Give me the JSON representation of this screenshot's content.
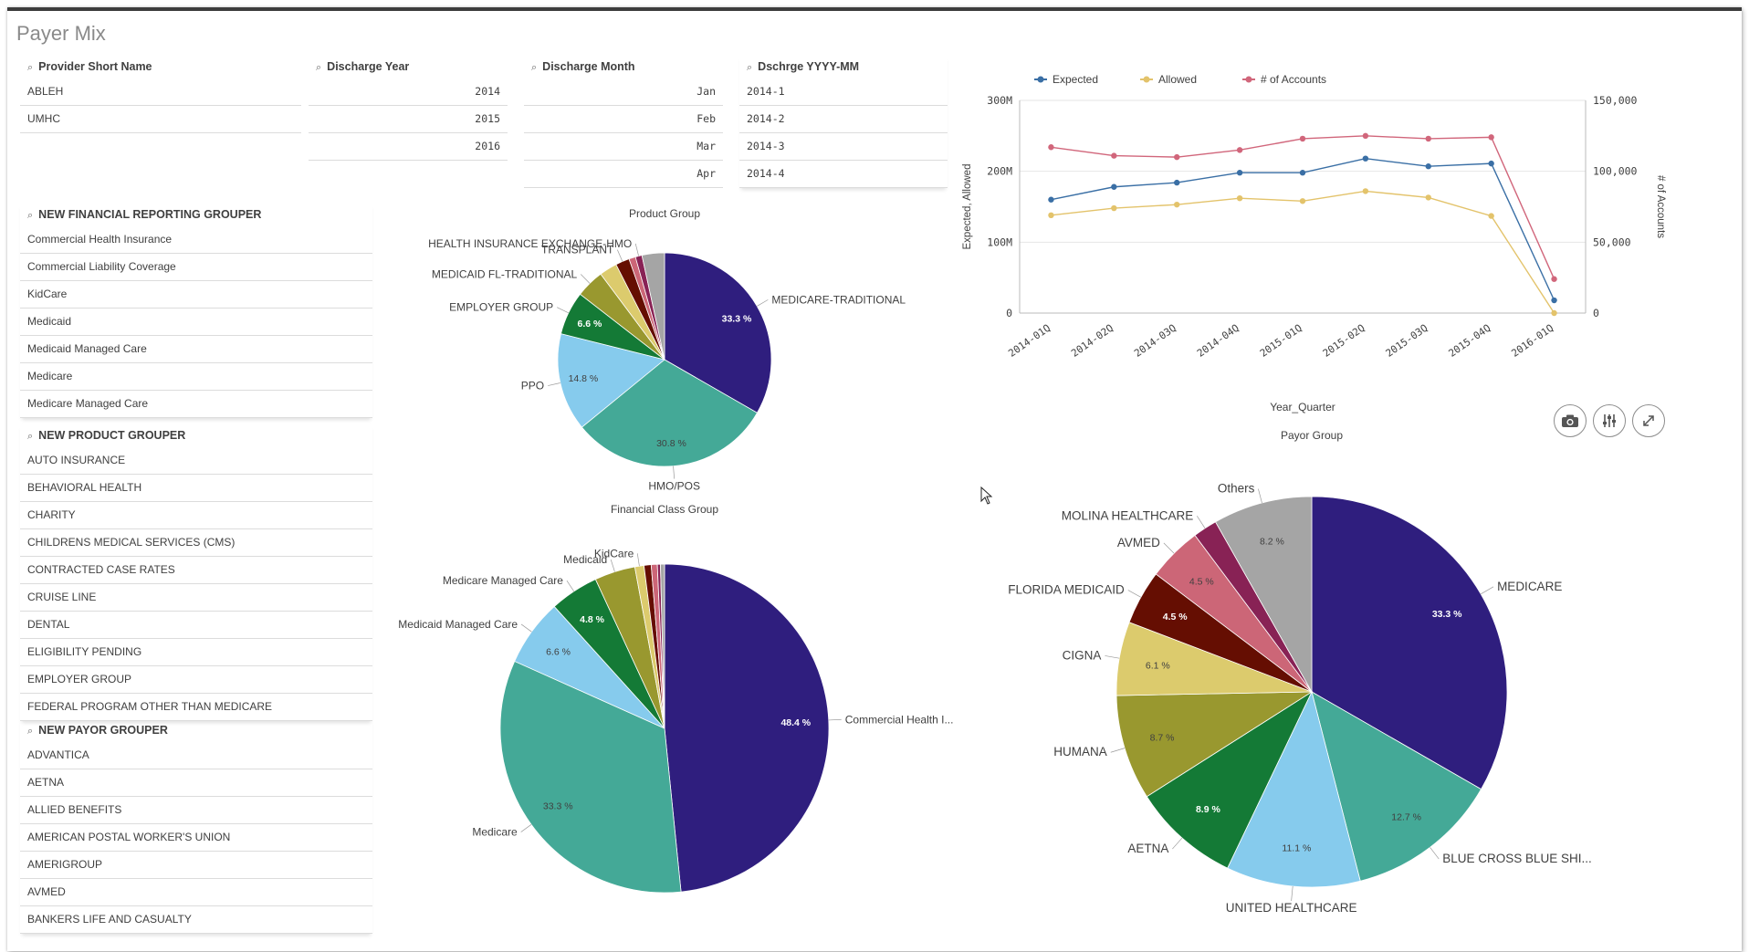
{
  "sheet": {
    "title": "Payer Mix"
  },
  "filters": {
    "provider": {
      "title": "Provider Short Name",
      "items": [
        "ABLEH",
        "UMHC"
      ]
    },
    "year": {
      "title": "Discharge Year",
      "items": [
        "2014",
        "2015",
        "2016"
      ]
    },
    "month": {
      "title": "Discharge Month",
      "items": [
        "Jan",
        "Feb",
        "Mar",
        "Apr"
      ]
    },
    "yyyymm": {
      "title": "Dschrge YYYY-MM",
      "items": [
        "2014-1",
        "2014-2",
        "2014-3",
        "2014-4"
      ]
    },
    "financial": {
      "title": "NEW FINANCIAL REPORTING GROUPER",
      "items": [
        "Commercial Health Insurance",
        "Commercial Liability Coverage",
        "KidCare",
        "Medicaid",
        "Medicaid Managed Care",
        "Medicare",
        "Medicare Managed Care"
      ]
    },
    "product": {
      "title": "NEW PRODUCT GROUPER",
      "items": [
        "AUTO INSURANCE",
        "BEHAVIORAL HEALTH",
        "CHARITY",
        "CHILDRENS MEDICAL SERVICES (CMS)",
        "CONTRACTED CASE RATES",
        "CRUISE LINE",
        "DENTAL",
        "ELIGIBILITY PENDING",
        "EMPLOYER GROUP",
        "FEDERAL PROGRAM OTHER THAN MEDICARE"
      ]
    },
    "payor": {
      "title": "NEW PAYOR GROUPER",
      "items": [
        "ADVANTICA",
        "AETNA",
        "ALLIED BENEFITS",
        "AMERICAN POSTAL WORKER'S UNION",
        "AMERIGROUP",
        "AVMED",
        "BANKERS LIFE AND CASUALTY"
      ]
    }
  },
  "tool_icons": [
    "camera-icon",
    "sliders-icon",
    "expand-icon"
  ],
  "colors": {
    "navy": "#2f1e7e",
    "teal": "#44a997",
    "lightblue": "#86cbed",
    "green": "#147a36",
    "olive": "#99982f",
    "sand": "#dccb6d",
    "darkred": "#650e02",
    "rose": "#cc6677",
    "plum": "#882255",
    "gray": "#a5a5a5",
    "line_expected": "#3a6fa5",
    "line_allowed": "#e3c36b",
    "line_accounts": "#d1667b"
  },
  "chart_data": [
    {
      "id": "line",
      "type": "line",
      "title": "",
      "legend": [
        "Expected",
        "Allowed",
        "# of Accounts"
      ],
      "categories": [
        "2014-01Q",
        "2014-02Q",
        "2014-03Q",
        "2014-04Q",
        "2015-01Q",
        "2015-02Q",
        "2015-03Q",
        "2015-04Q",
        "2016-01Q"
      ],
      "xlabel": "Year_Quarter",
      "ylabel": "Expected, Allowed",
      "y2label": "# of Accounts",
      "yticks": [
        "0",
        "100M",
        "200M",
        "300M"
      ],
      "y2ticks": [
        "0",
        "50,000",
        "100,000",
        "150,000"
      ],
      "ylim": [
        0,
        300000000
      ],
      "y2lim": [
        0,
        150000
      ],
      "series": [
        {
          "name": "Expected",
          "axis": "left",
          "values": [
            160000000,
            178000000,
            184000000,
            198000000,
            198000000,
            218000000,
            207000000,
            211000000,
            18000000
          ]
        },
        {
          "name": "Allowed",
          "axis": "left",
          "values": [
            138000000,
            148000000,
            153000000,
            162000000,
            158000000,
            172000000,
            163000000,
            137000000,
            0
          ]
        },
        {
          "name": "# of Accounts",
          "axis": "right",
          "values": [
            117000,
            111000,
            110000,
            115000,
            123000,
            125000,
            123000,
            124000,
            24000
          ]
        }
      ]
    },
    {
      "id": "product",
      "type": "pie",
      "title": "Product Group",
      "slices": [
        {
          "label": "MEDICARE-TRADITIONAL",
          "value": 33.3,
          "pct": "33.3 %",
          "color": "#2f1e7e"
        },
        {
          "label": "HMO/POS",
          "value": 30.8,
          "pct": "30.8 %",
          "color": "#44a997"
        },
        {
          "label": "PPO",
          "value": 14.8,
          "pct": "14.8 %",
          "color": "#86cbed"
        },
        {
          "label": "EMPLOYER GROUP",
          "value": 6.6,
          "pct": "6.6 %",
          "color": "#147a36"
        },
        {
          "label": "MEDICAID FL-TRADITIONAL",
          "value": 4.3,
          "pct": "",
          "color": "#99982f"
        },
        {
          "label": "",
          "value": 2.7,
          "pct": "",
          "color": "#dccb6d"
        },
        {
          "label": "TRANSPLANT",
          "value": 2.1,
          "pct": "",
          "color": "#650e02"
        },
        {
          "label": "",
          "value": 1.0,
          "pct": "",
          "color": "#cc6677"
        },
        {
          "label": "HEALTH INSURANCE EXCHANGE-HMO",
          "value": 1.0,
          "pct": "",
          "color": "#882255"
        },
        {
          "label": "",
          "value": 3.4,
          "pct": "",
          "color": "#a5a5a5"
        }
      ]
    },
    {
      "id": "financial",
      "type": "pie",
      "title": "Financial Class Group",
      "slices": [
        {
          "label": "Commercial Health I...",
          "value": 48.4,
          "pct": "48.4 %",
          "color": "#2f1e7e"
        },
        {
          "label": "Medicare",
          "value": 33.3,
          "pct": "33.3 %",
          "color": "#44a997"
        },
        {
          "label": "Medicaid Managed Care",
          "value": 6.6,
          "pct": "6.6 %",
          "color": "#86cbed"
        },
        {
          "label": "Medicare Managed Care",
          "value": 4.8,
          "pct": "4.8 %",
          "color": "#147a36"
        },
        {
          "label": "Medicaid",
          "value": 4.0,
          "pct": "",
          "color": "#99982f"
        },
        {
          "label": "KidCare",
          "value": 0.9,
          "pct": "",
          "color": "#dccb6d"
        },
        {
          "label": "",
          "value": 0.7,
          "pct": "",
          "color": "#650e02"
        },
        {
          "label": "",
          "value": 0.6,
          "pct": "",
          "color": "#cc6677"
        },
        {
          "label": "",
          "value": 0.3,
          "pct": "",
          "color": "#882255"
        },
        {
          "label": "",
          "value": 0.4,
          "pct": "",
          "color": "#a5a5a5"
        }
      ]
    },
    {
      "id": "payor",
      "type": "pie",
      "title": "Payor Group",
      "slices": [
        {
          "label": "MEDICARE",
          "value": 33.3,
          "pct": "33.3 %",
          "color": "#2f1e7e"
        },
        {
          "label": "BLUE CROSS BLUE SHI...",
          "value": 12.7,
          "pct": "12.7 %",
          "color": "#44a997"
        },
        {
          "label": "UNITED HEALTHCARE",
          "value": 11.1,
          "pct": "11.1 %",
          "color": "#86cbed"
        },
        {
          "label": "AETNA",
          "value": 8.9,
          "pct": "8.9 %",
          "color": "#147a36"
        },
        {
          "label": "HUMANA",
          "value": 8.7,
          "pct": "8.7 %",
          "color": "#99982f"
        },
        {
          "label": "CIGNA",
          "value": 6.1,
          "pct": "6.1 %",
          "color": "#dccb6d"
        },
        {
          "label": "FLORIDA MEDICAID",
          "value": 4.5,
          "pct": "4.5 %",
          "color": "#650e02"
        },
        {
          "label": "AVMED",
          "value": 4.5,
          "pct": "4.5 %",
          "color": "#cc6677"
        },
        {
          "label": "MOLINA HEALTHCARE",
          "value": 2.0,
          "pct": "",
          "color": "#882255"
        },
        {
          "label": "Others",
          "value": 8.2,
          "pct": "8.2 %",
          "color": "#a5a5a5"
        }
      ]
    }
  ]
}
